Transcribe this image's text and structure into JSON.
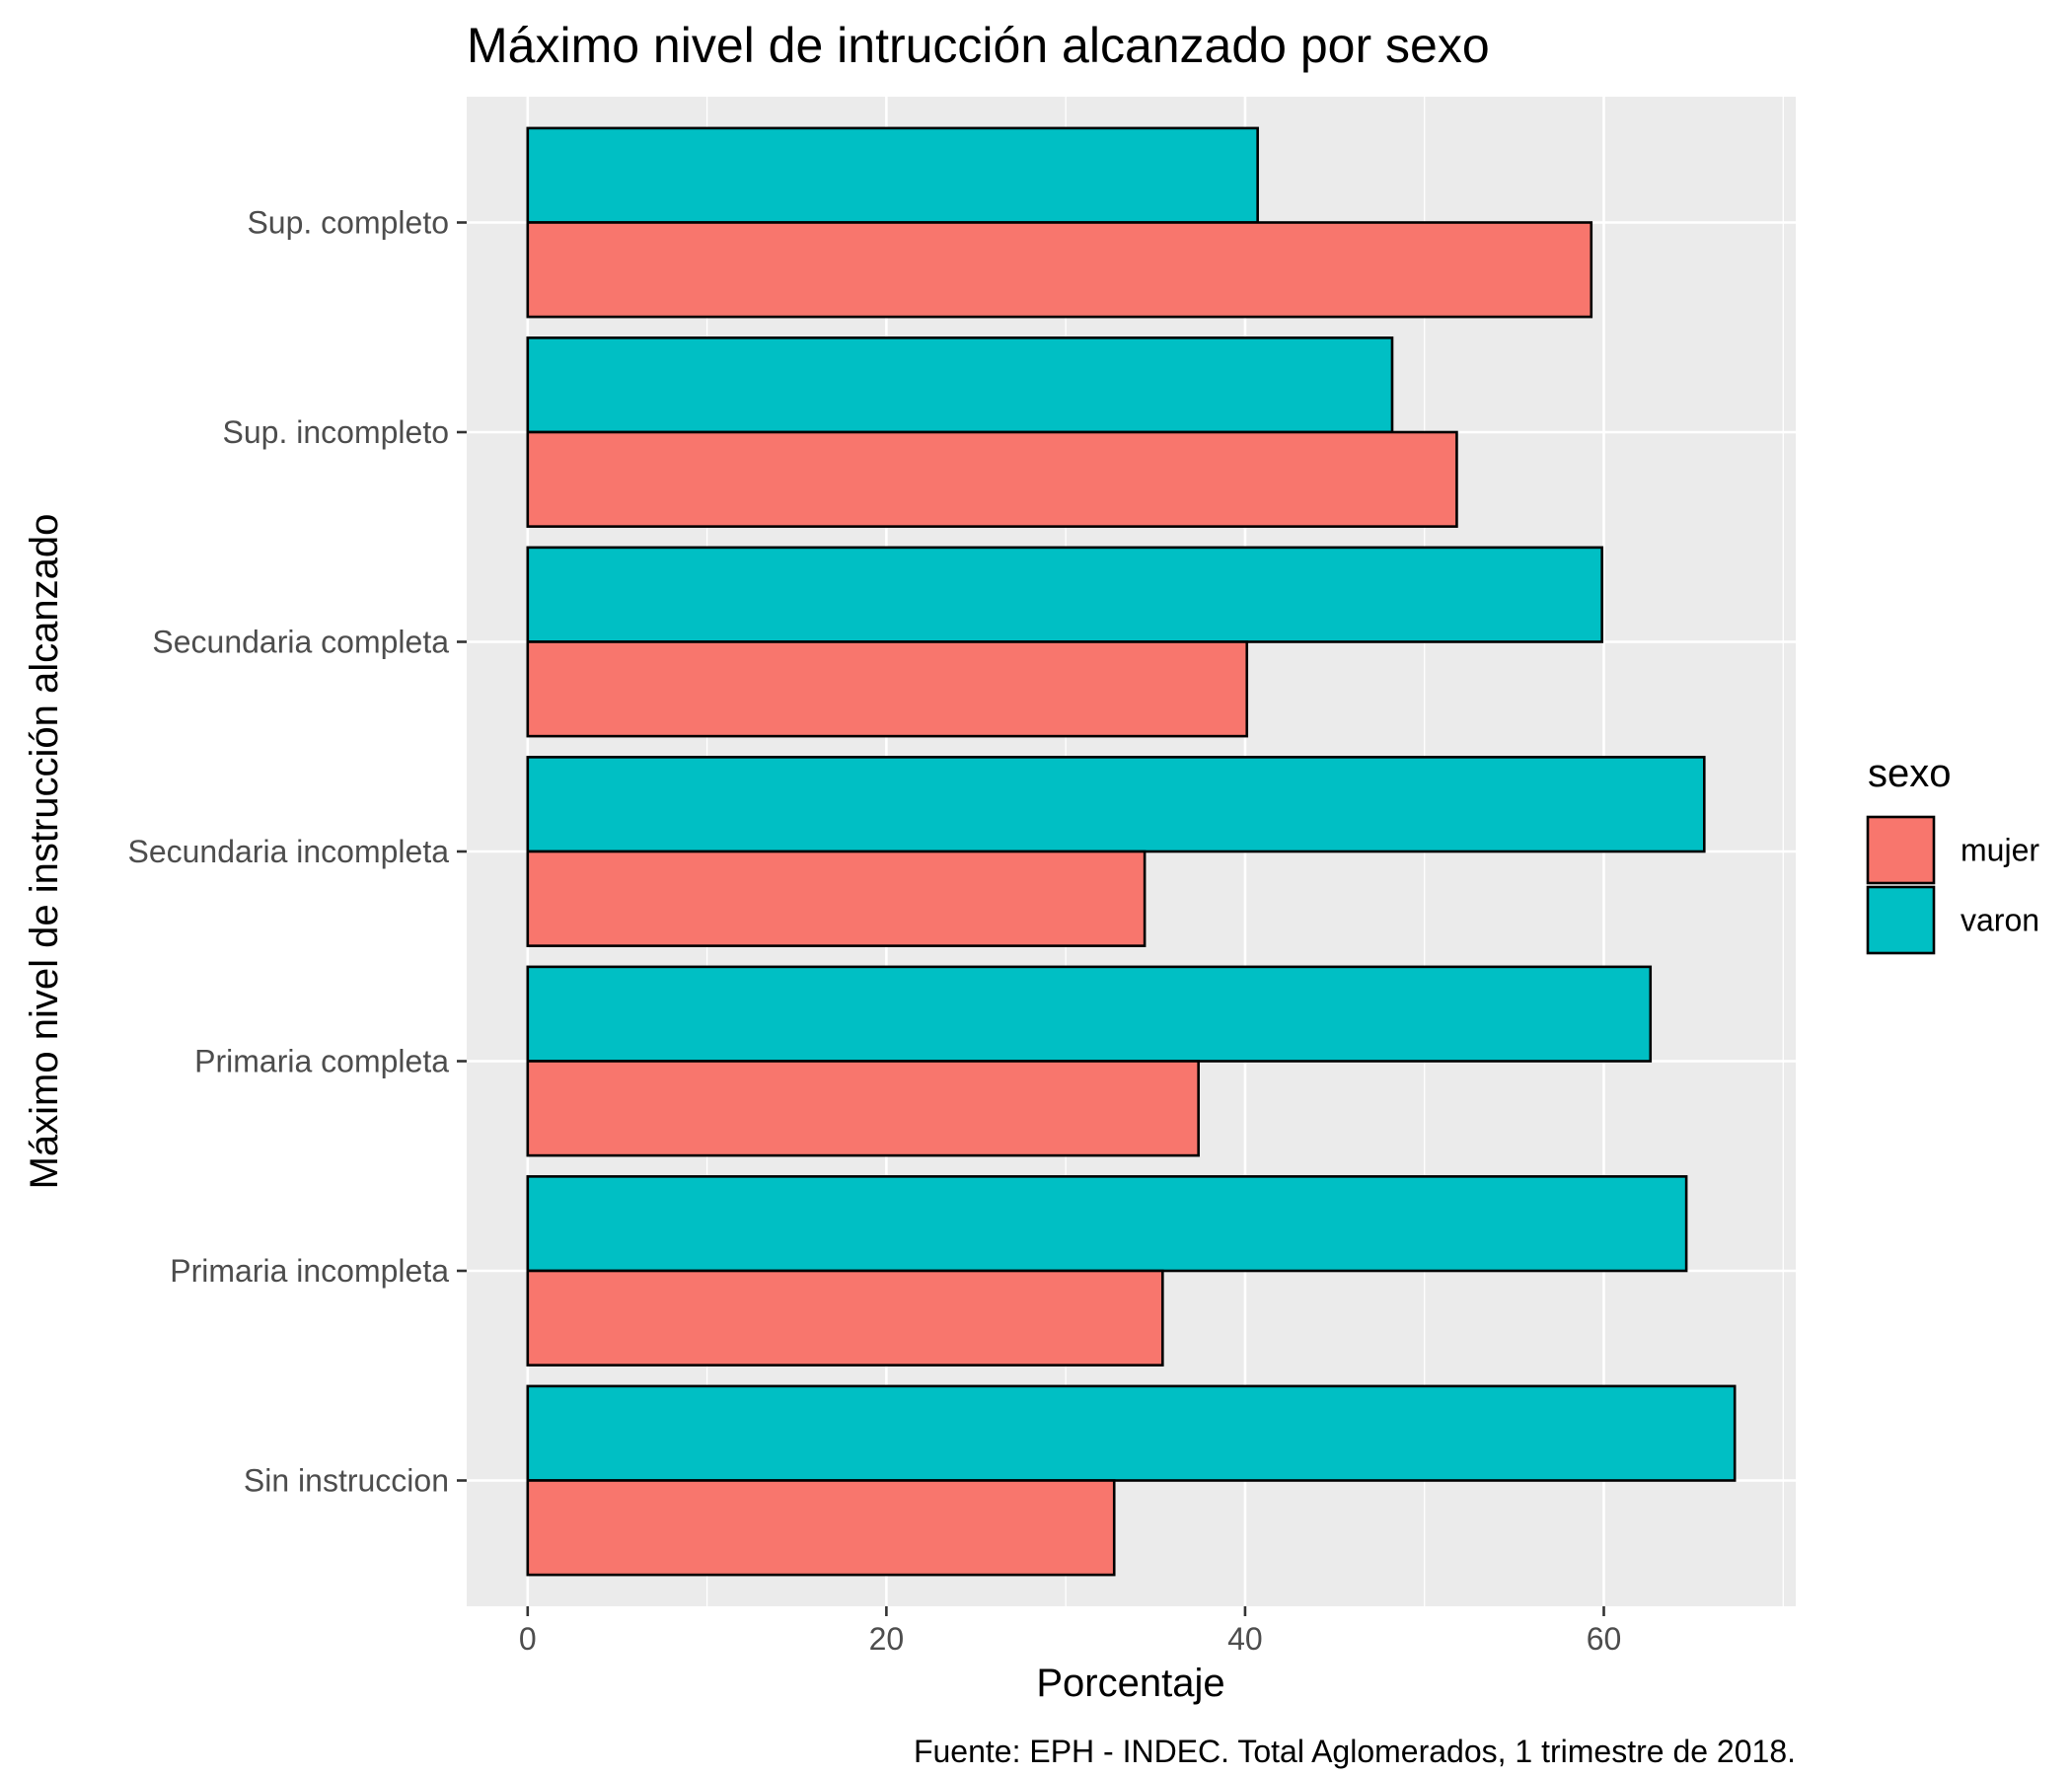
{
  "chart_data": {
    "type": "bar",
    "orientation": "horizontal",
    "title": "Máximo nivel de intrucción alcanzado por sexo",
    "xlabel": "Porcentaje",
    "ylabel": "Máximo nivel de instrucción alcanzado",
    "caption": "Fuente: EPH - INDEC. Total Aglomerados, 1 trimestre de 2018.",
    "categories": [
      "Sup. completo",
      "Sup. incompleto",
      "Secundaria completa",
      "Secundaria incompleta",
      "Primaria completa",
      "Primaria incompleta",
      "Sin instruccion"
    ],
    "series": [
      {
        "name": "mujer",
        "color": "#F8766D",
        "values": [
          59.3,
          51.8,
          40.1,
          34.4,
          37.4,
          35.4,
          32.7
        ]
      },
      {
        "name": "varon",
        "color": "#00BFC4",
        "values": [
          40.7,
          48.2,
          59.9,
          65.6,
          62.6,
          64.6,
          67.3
        ]
      }
    ],
    "xlim": [
      -3.4,
      70.7
    ],
    "xticks": [
      0,
      20,
      40,
      60
    ],
    "legend": {
      "title": "sexo",
      "position": "right"
    },
    "grid": true,
    "panel_background": "#EBEBEB",
    "grid_color": "#FFFFFF",
    "bar_outline": "#000000"
  }
}
